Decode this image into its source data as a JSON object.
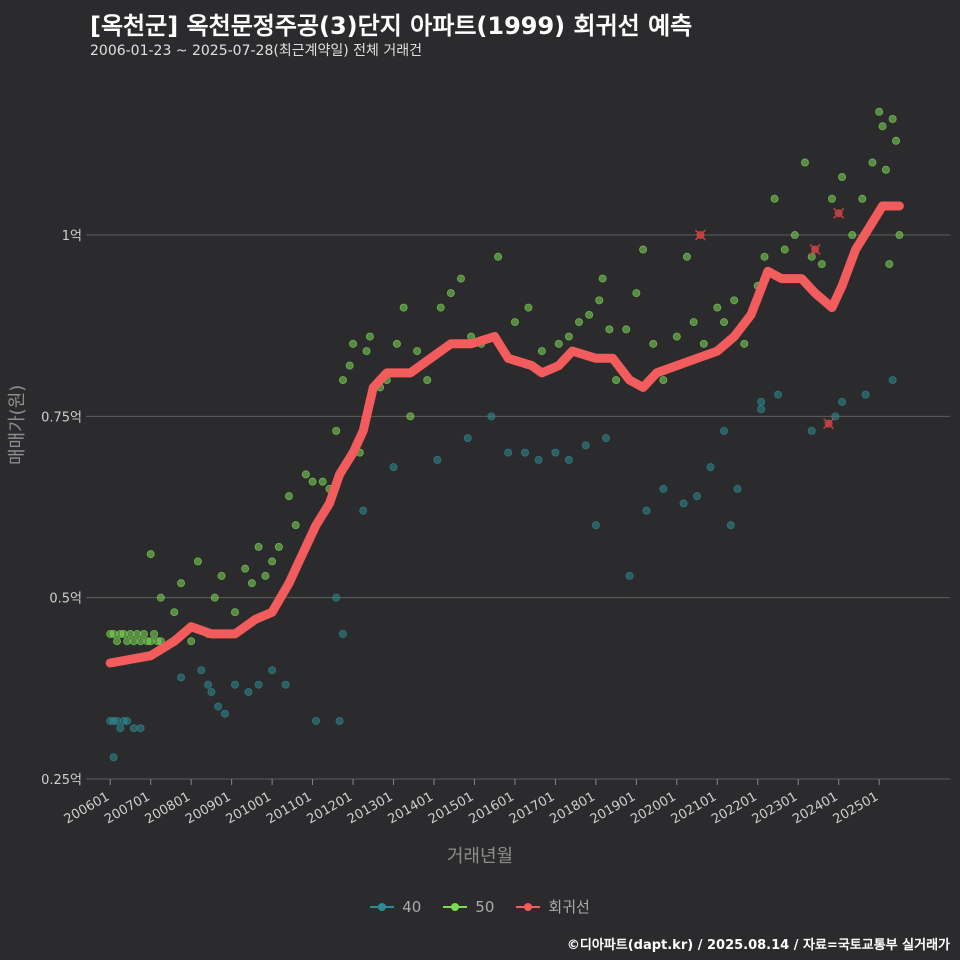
{
  "title": "[옥천군] 옥천문정주공(3)단지 아파트(1999) 회귀선 예측",
  "subtitle": "2006-01-23 ~ 2025-07-28(최근계약일) 전체 거래건",
  "caption": "©디아파트(dapt.kr) / 2025.08.14 / 자료=국토교통부 실거래가",
  "colors": {
    "s40": "#2e8b92",
    "s50": "#7ed957",
    "regression": "#f25c5c",
    "grid": "#5e5e5e"
  },
  "chart_data": {
    "type": "scatter",
    "xlabel": "거래년월",
    "ylabel": "매매가(원)",
    "x_ticks": [
      "200601",
      "200701",
      "200801",
      "200901",
      "201001",
      "201101",
      "201201",
      "201301",
      "201401",
      "201501",
      "201601",
      "201701",
      "201801",
      "201901",
      "202001",
      "202101",
      "202201",
      "202301",
      "202401",
      "202501"
    ],
    "y_ticks": [
      {
        "value": 0.25,
        "label": "0.25억"
      },
      {
        "value": 0.5,
        "label": "0.5억"
      },
      {
        "value": 0.75,
        "label": "0.75억"
      },
      {
        "value": 1.0,
        "label": "1억"
      }
    ],
    "xlim": [
      "2005-07",
      "2026-10"
    ],
    "ylim": [
      0.25,
      1.2
    ],
    "grid": "horizontal",
    "legend_position": "bottom",
    "legend": [
      {
        "key": "s40",
        "label": "40"
      },
      {
        "key": "s50",
        "label": "50"
      },
      {
        "key": "regression",
        "label": "회귀선"
      }
    ],
    "series": [
      {
        "name": "40",
        "points": [
          [
            "2006-01",
            0.33
          ],
          [
            "2006-02",
            0.33
          ],
          [
            "2006-03",
            0.33
          ],
          [
            "2006-04",
            0.32
          ],
          [
            "2006-05",
            0.33
          ],
          [
            "2006-06",
            0.33
          ],
          [
            "2006-08",
            0.32
          ],
          [
            "2006-10",
            0.32
          ],
          [
            "2006-02",
            0.28
          ],
          [
            "2007-10",
            0.39
          ],
          [
            "2008-04",
            0.4
          ],
          [
            "2008-06",
            0.38
          ],
          [
            "2008-07",
            0.37
          ],
          [
            "2008-09",
            0.35
          ],
          [
            "2008-11",
            0.34
          ],
          [
            "2009-02",
            0.38
          ],
          [
            "2009-06",
            0.37
          ],
          [
            "2009-09",
            0.38
          ],
          [
            "2010-01",
            0.4
          ],
          [
            "2010-05",
            0.38
          ],
          [
            "2011-02",
            0.33
          ],
          [
            "2011-08",
            0.5
          ],
          [
            "2011-10",
            0.45
          ],
          [
            "2011-09",
            0.33
          ],
          [
            "2012-04",
            0.62
          ],
          [
            "2013-01",
            0.68
          ],
          [
            "2014-02",
            0.69
          ],
          [
            "2014-11",
            0.72
          ],
          [
            "2015-06",
            0.75
          ],
          [
            "2015-11",
            0.7
          ],
          [
            "2016-04",
            0.7
          ],
          [
            "2016-08",
            0.69
          ],
          [
            "2017-01",
            0.7
          ],
          [
            "2017-05",
            0.69
          ],
          [
            "2017-10",
            0.71
          ],
          [
            "2018-01",
            0.6
          ],
          [
            "2018-04",
            0.72
          ],
          [
            "2018-11",
            0.53
          ],
          [
            "2019-04",
            0.62
          ],
          [
            "2019-09",
            0.65
          ],
          [
            "2020-03",
            0.63
          ],
          [
            "2020-07",
            0.64
          ],
          [
            "2020-11",
            0.68
          ],
          [
            "2021-03",
            0.73
          ],
          [
            "2021-05",
            0.6
          ],
          [
            "2021-07",
            0.65
          ],
          [
            "2022-02",
            0.77
          ],
          [
            "2022-02",
            0.76
          ],
          [
            "2022-07",
            0.78
          ],
          [
            "2023-05",
            0.73
          ],
          [
            "2023-12",
            0.75
          ],
          [
            "2024-02",
            0.77
          ],
          [
            "2024-09",
            0.78
          ],
          [
            "2025-05",
            0.8
          ]
        ]
      },
      {
        "name": "50",
        "points": [
          [
            "2006-01",
            0.45
          ],
          [
            "2006-02",
            0.45
          ],
          [
            "2006-03",
            0.44
          ],
          [
            "2006-04",
            0.45
          ],
          [
            "2006-05",
            0.45
          ],
          [
            "2006-06",
            0.44
          ],
          [
            "2006-07",
            0.45
          ],
          [
            "2006-08",
            0.44
          ],
          [
            "2006-09",
            0.45
          ],
          [
            "2006-10",
            0.44
          ],
          [
            "2006-11",
            0.45
          ],
          [
            "2006-12",
            0.44
          ],
          [
            "2007-01",
            0.44
          ],
          [
            "2007-02",
            0.45
          ],
          [
            "2007-03",
            0.44
          ],
          [
            "2007-04",
            0.44
          ],
          [
            "2007-01",
            0.56
          ],
          [
            "2007-04",
            0.5
          ],
          [
            "2007-08",
            0.48
          ],
          [
            "2007-10",
            0.52
          ],
          [
            "2008-01",
            0.44
          ],
          [
            "2008-03",
            0.55
          ],
          [
            "2008-06",
            0.45
          ],
          [
            "2008-08",
            0.5
          ],
          [
            "2008-10",
            0.53
          ],
          [
            "2009-01",
            0.45
          ],
          [
            "2009-02",
            0.48
          ],
          [
            "2009-05",
            0.54
          ],
          [
            "2009-07",
            0.52
          ],
          [
            "2009-09",
            0.57
          ],
          [
            "2009-11",
            0.53
          ],
          [
            "2010-01",
            0.55
          ],
          [
            "2010-03",
            0.57
          ],
          [
            "2010-06",
            0.64
          ],
          [
            "2010-08",
            0.6
          ],
          [
            "2010-11",
            0.67
          ],
          [
            "2011-01",
            0.66
          ],
          [
            "2011-04",
            0.66
          ],
          [
            "2011-06",
            0.65
          ],
          [
            "2011-08",
            0.73
          ],
          [
            "2011-10",
            0.8
          ],
          [
            "2011-12",
            0.82
          ],
          [
            "2012-01",
            0.85
          ],
          [
            "2012-03",
            0.7
          ],
          [
            "2012-05",
            0.84
          ],
          [
            "2012-06",
            0.86
          ],
          [
            "2012-09",
            0.79
          ],
          [
            "2012-11",
            0.8
          ],
          [
            "2013-02",
            0.85
          ],
          [
            "2013-04",
            0.9
          ],
          [
            "2013-06",
            0.75
          ],
          [
            "2013-08",
            0.84
          ],
          [
            "2013-11",
            0.8
          ],
          [
            "2014-03",
            0.9
          ],
          [
            "2014-06",
            0.92
          ],
          [
            "2014-09",
            0.94
          ],
          [
            "2014-12",
            0.86
          ],
          [
            "2015-03",
            0.85
          ],
          [
            "2015-08",
            0.97
          ],
          [
            "2016-01",
            0.88
          ],
          [
            "2016-05",
            0.9
          ],
          [
            "2016-09",
            0.84
          ],
          [
            "2017-02",
            0.85
          ],
          [
            "2017-05",
            0.86
          ],
          [
            "2017-08",
            0.88
          ],
          [
            "2017-11",
            0.89
          ],
          [
            "2018-02",
            0.91
          ],
          [
            "2018-03",
            0.94
          ],
          [
            "2018-05",
            0.87
          ],
          [
            "2018-07",
            0.8
          ],
          [
            "2018-10",
            0.87
          ],
          [
            "2019-01",
            0.92
          ],
          [
            "2019-03",
            0.98
          ],
          [
            "2019-06",
            0.85
          ],
          [
            "2019-09",
            0.8
          ],
          [
            "2020-01",
            0.86
          ],
          [
            "2020-04",
            0.97
          ],
          [
            "2020-06",
            0.88
          ],
          [
            "2020-09",
            0.85
          ],
          [
            "2021-01",
            0.9
          ],
          [
            "2021-03",
            0.88
          ],
          [
            "2021-06",
            0.91
          ],
          [
            "2021-09",
            0.85
          ],
          [
            "2022-01",
            0.93
          ],
          [
            "2022-03",
            0.97
          ],
          [
            "2022-06",
            1.05
          ],
          [
            "2022-09",
            0.98
          ],
          [
            "2022-12",
            1.0
          ],
          [
            "2023-03",
            1.1
          ],
          [
            "2023-05",
            0.97
          ],
          [
            "2023-08",
            0.96
          ],
          [
            "2023-11",
            1.05
          ],
          [
            "2024-02",
            1.08
          ],
          [
            "2024-05",
            1.0
          ],
          [
            "2024-08",
            1.05
          ],
          [
            "2024-11",
            1.1
          ],
          [
            "2025-01",
            1.17
          ],
          [
            "2025-02",
            1.15
          ],
          [
            "2025-03",
            1.09
          ],
          [
            "2025-04",
            0.96
          ],
          [
            "2025-05",
            1.16
          ],
          [
            "2025-06",
            1.13
          ],
          [
            "2025-07",
            1.0
          ]
        ]
      },
      {
        "name": "회귀선",
        "points": [
          [
            "2006-01",
            0.41
          ],
          [
            "2007-01",
            0.42
          ],
          [
            "2007-08",
            0.44
          ],
          [
            "2008-01",
            0.46
          ],
          [
            "2008-07",
            0.45
          ],
          [
            "2009-02",
            0.45
          ],
          [
            "2009-08",
            0.47
          ],
          [
            "2010-01",
            0.48
          ],
          [
            "2010-06",
            0.52
          ],
          [
            "2010-09",
            0.55
          ],
          [
            "2011-02",
            0.6
          ],
          [
            "2011-06",
            0.63
          ],
          [
            "2011-09",
            0.67
          ],
          [
            "2012-01",
            0.7
          ],
          [
            "2012-04",
            0.73
          ],
          [
            "2012-07",
            0.79
          ],
          [
            "2012-11",
            0.81
          ],
          [
            "2013-06",
            0.81
          ],
          [
            "2013-12",
            0.83
          ],
          [
            "2014-06",
            0.85
          ],
          [
            "2014-12",
            0.85
          ],
          [
            "2015-07",
            0.86
          ],
          [
            "2015-11",
            0.83
          ],
          [
            "2016-06",
            0.82
          ],
          [
            "2016-09",
            0.81
          ],
          [
            "2017-02",
            0.82
          ],
          [
            "2017-06",
            0.84
          ],
          [
            "2018-01",
            0.83
          ],
          [
            "2018-06",
            0.83
          ],
          [
            "2018-11",
            0.8
          ],
          [
            "2019-03",
            0.79
          ],
          [
            "2019-07",
            0.81
          ],
          [
            "2020-01",
            0.82
          ],
          [
            "2020-07",
            0.83
          ],
          [
            "2021-01",
            0.84
          ],
          [
            "2021-06",
            0.86
          ],
          [
            "2021-11",
            0.89
          ],
          [
            "2022-04",
            0.95
          ],
          [
            "2022-08",
            0.94
          ],
          [
            "2023-02",
            0.94
          ],
          [
            "2023-06",
            0.92
          ],
          [
            "2023-11",
            0.9
          ],
          [
            "2024-02",
            0.93
          ],
          [
            "2024-06",
            0.98
          ],
          [
            "2024-10",
            1.01
          ],
          [
            "2025-02",
            1.04
          ],
          [
            "2025-07",
            1.04
          ]
        ]
      }
    ],
    "outliers": [
      [
        "2020-08",
        1.0
      ],
      [
        "2023-06",
        0.98
      ],
      [
        "2023-10",
        0.74
      ],
      [
        "2024-01",
        1.03
      ]
    ]
  }
}
